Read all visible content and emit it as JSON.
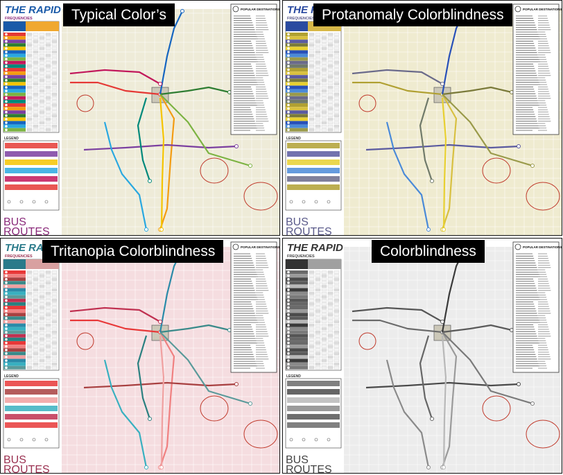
{
  "panels": [
    {
      "caption": "Typical Color’s",
      "palette": "typical"
    },
    {
      "caption": "Protanomaly  Colorblindness",
      "palette": "protanomaly"
    },
    {
      "caption": "Tritanopia Colorblindness",
      "palette": "tritanopia"
    },
    {
      "caption": "Colorblindness",
      "palette": "achromatopsia"
    }
  ],
  "map_text": {
    "logo": "THE RAPID",
    "frequencies": "FREQUENCIES",
    "routes_header": "ROUTES",
    "legend": "LEGEND",
    "popular_destinations": "POPULAR DESTINATIONS",
    "bus": "BUS",
    "routes": "ROUTES"
  },
  "palettes": {
    "typical": {
      "map_bg": "#eeebd8",
      "route_colors": [
        "#e53935",
        "#f39c12",
        "#7b3fa0",
        "#2e7d32",
        "#f5c400",
        "#1565c0",
        "#29a8e0",
        "#7cb342",
        "#c2185b",
        "#00897b"
      ],
      "accent": "#8a2a7a",
      "logo_color": "#1a5aa8",
      "table_header": "#f0a830"
    },
    "protanomaly": {
      "map_bg": "#efebd0",
      "route_colors": [
        "#b0a032",
        "#d8c040",
        "#5a5aa0",
        "#7a7a3a",
        "#e8d030",
        "#2850b8",
        "#4a8ad8",
        "#9a9a4a",
        "#6a6a8a",
        "#707a6a"
      ],
      "accent": "#5a5a8a",
      "logo_color": "#2a4aa0",
      "table_header": "#d8b848"
    },
    "tritanopia": {
      "map_bg": "#f5dde0",
      "route_colors": [
        "#e83838",
        "#f08080",
        "#a84040",
        "#3a8a8a",
        "#f0a0a0",
        "#2a8aa8",
        "#38b0c0",
        "#5a9a9a",
        "#c03050",
        "#2a8080"
      ],
      "accent": "#9a3050",
      "logo_color": "#2a7a8a",
      "table_header": "#d8a0a0"
    },
    "achromatopsia": {
      "map_bg": "#ececec",
      "route_colors": [
        "#6a6a6a",
        "#9a9a9a",
        "#4a4a4a",
        "#5a5a5a",
        "#b8b8b8",
        "#3a3a3a",
        "#8a8a8a",
        "#7a7a7a",
        "#555555",
        "#666666"
      ],
      "accent": "#444444",
      "logo_color": "#333333",
      "table_header": "#a0a0a0"
    }
  }
}
